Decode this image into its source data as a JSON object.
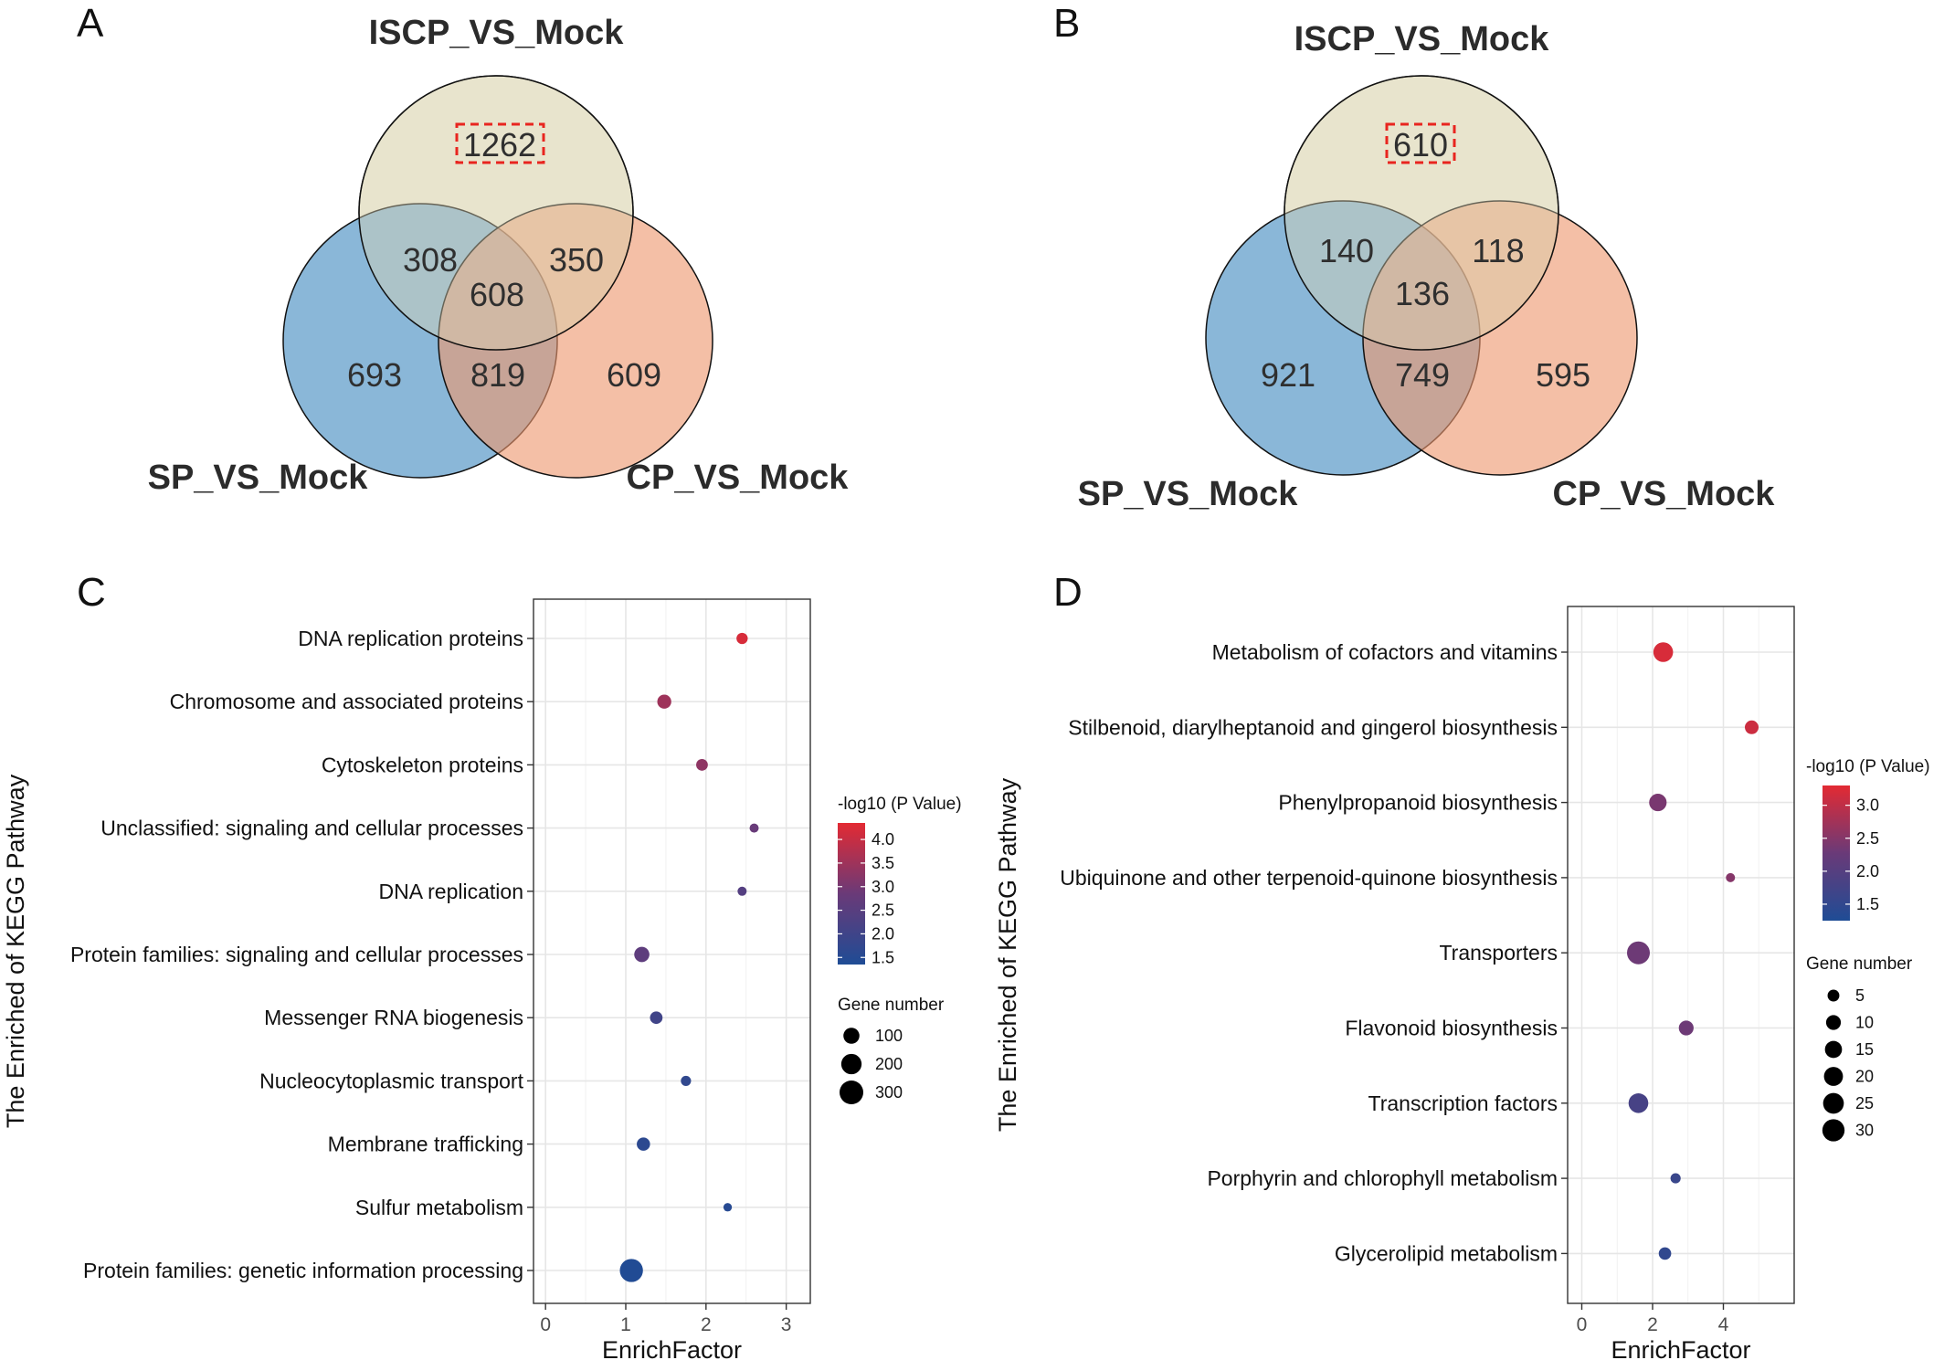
{
  "panels": {
    "A": {
      "letter": "A",
      "sets": [
        "ISCP_VS_Mock",
        "SP_VS_Mock",
        "CP_VS_Mock"
      ],
      "regions": {
        "iscp_only": "1262",
        "iscp_sp": "308",
        "iscp_cp": "350",
        "all": "608",
        "sp_only": "693",
        "sp_cp": "819",
        "cp_only": "609"
      }
    },
    "B": {
      "letter": "B",
      "sets": [
        "ISCP_VS_Mock",
        "SP_VS_Mock",
        "CP_VS_Mock"
      ],
      "regions": {
        "iscp_only": "610",
        "iscp_sp": "140",
        "iscp_cp": "118",
        "all": "136",
        "sp_only": "921",
        "sp_cp": "749",
        "cp_only": "595"
      }
    },
    "C": {
      "letter": "C"
    },
    "D": {
      "letter": "D"
    }
  },
  "colors": {
    "iscp": "#efeedd",
    "sp": "#7aadd3",
    "cp": "#ee9770",
    "highlight_box": "#e8251f",
    "low": "#1f4c95",
    "high": "#e32a33"
  },
  "chart_data": [
    {
      "id": "C",
      "type": "scatter",
      "xlabel": "EnrichFactor",
      "ylabel": "The Enriched of KEGG Pathway",
      "xlim": [
        -0.15,
        3.3
      ],
      "xticks": [
        0,
        1,
        2,
        3
      ],
      "grid": true,
      "categories": [
        "DNA replication proteins",
        "Chromosome and associated proteins",
        "Cytoskeleton proteins",
        "Unclassified: signaling and cellular processes",
        "DNA replication",
        "Protein families: signaling and cellular processes",
        "Messenger RNA biogenesis",
        "Nucleocytoplasmic transport",
        "Membrane trafficking",
        "Sulfur metabolism",
        "Protein families: genetic information processing"
      ],
      "enrich_factor": [
        2.45,
        1.48,
        1.95,
        2.6,
        2.45,
        1.2,
        1.38,
        1.75,
        1.22,
        2.27,
        1.07
      ],
      "neg_log10_p": [
        4.2,
        3.5,
        3.3,
        2.8,
        2.4,
        2.6,
        2.0,
        1.7,
        1.6,
        1.5,
        1.4
      ],
      "gene_number": [
        30,
        65,
        35,
        12,
        12,
        85,
        45,
        20,
        55,
        8,
        280
      ],
      "color_legend": {
        "title": "-log10 (P Value)",
        "range": [
          1.35,
          4.35
        ],
        "ticks": [
          "1.5",
          "2.0",
          "2.5",
          "3.0",
          "3.5",
          "4.0"
        ]
      },
      "size_legend": {
        "title": "Gene number",
        "ticks": [
          "100",
          "200",
          "300"
        ]
      },
      "legend_position": "right"
    },
    {
      "id": "D",
      "type": "scatter",
      "xlabel": "EnrichFactor",
      "ylabel": "The Enriched of KEGG Pathway",
      "xlim": [
        -0.4,
        6.0
      ],
      "xticks": [
        0,
        2,
        4
      ],
      "grid": true,
      "categories": [
        "Metabolism of cofactors and vitamins",
        "Stilbenoid, diarylheptanoid and gingerol biosynthesis",
        "Phenylpropanoid biosynthesis",
        "Ubiquinone and other terpenoid-quinone biosynthesis",
        "Transporters",
        "Flavonoid biosynthesis",
        "Transcription factors",
        "Porphyrin and chlorophyll metabolism",
        "Glycerolipid metabolism"
      ],
      "enrich_factor": [
        2.3,
        4.8,
        2.15,
        4.2,
        1.6,
        2.95,
        1.6,
        2.65,
        2.35
      ],
      "neg_log10_p": [
        3.2,
        3.1,
        2.4,
        2.5,
        2.3,
        2.3,
        1.8,
        1.6,
        1.5
      ],
      "gene_number": [
        22,
        8,
        16,
        2,
        32,
        10,
        22,
        3,
        6
      ],
      "color_legend": {
        "title": "-log10 (P Value)",
        "range": [
          1.25,
          3.3
        ],
        "ticks": [
          "1.5",
          "2.0",
          "2.5",
          "3.0"
        ]
      },
      "size_legend": {
        "title": "Gene number",
        "ticks": [
          "5",
          "10",
          "15",
          "20",
          "25",
          "30"
        ]
      },
      "legend_position": "right"
    }
  ]
}
